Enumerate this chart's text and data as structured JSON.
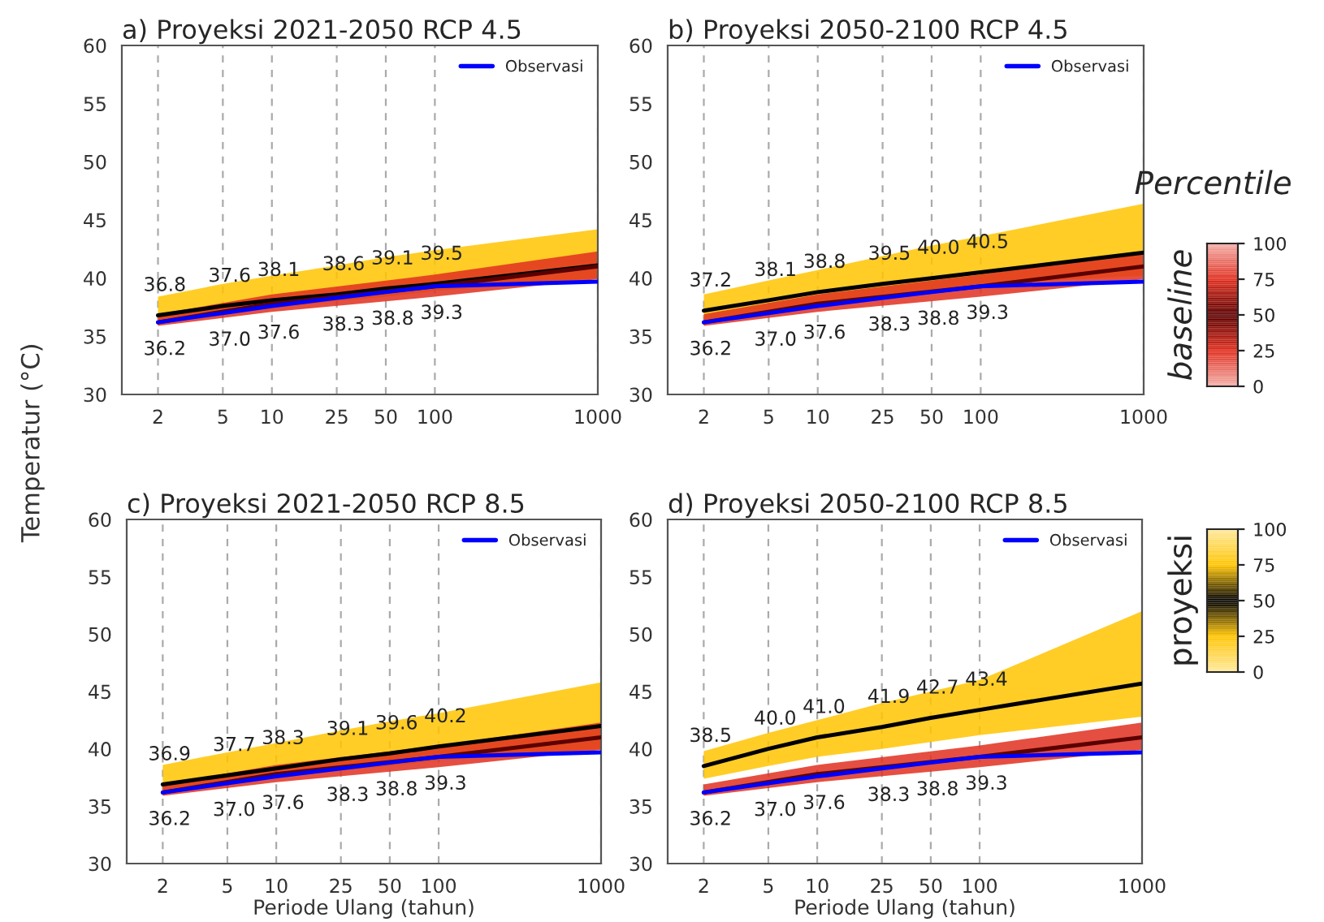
{
  "chart_data": [
    {
      "type": "line",
      "title": "a) Proyeksi 2021-2050 RCP 4.5",
      "ylabel": "Temperatur (°C)",
      "log": "x",
      "xlim": [
        1.2,
        1000
      ],
      "xticks": [
        2,
        5,
        10,
        25,
        50,
        100,
        1000
      ],
      "ylim": [
        30,
        60
      ],
      "yticks": [
        30,
        35,
        40,
        45,
        50,
        55,
        60
      ],
      "grid": "x",
      "legend": "top right",
      "series": [
        {
          "color": "#000000",
          "x": [
            2,
            5,
            10,
            25,
            50,
            100,
            1000
          ],
          "values": [
            36.8,
            37.6,
            38.1,
            38.6,
            39.1,
            39.5,
            41.1
          ],
          "lower": [
            36.2,
            36.9,
            37.4,
            38.0,
            38.4,
            38.9,
            40.0
          ],
          "upper": [
            38.4,
            39.5,
            40.2,
            41.1,
            41.8,
            42.4,
            44.2
          ],
          "value_labels": [
            "36.8",
            "37.6",
            "38.1",
            "38.6",
            "39.1",
            "39.5",
            null
          ]
        },
        {
          "color": "#5a0000",
          "x": [
            2,
            10,
            100,
            1000
          ],
          "values": [
            36.2,
            37.8,
            39.3,
            41.0
          ],
          "lower": [
            35.9,
            37.1,
            38.4,
            39.9
          ],
          "upper": [
            36.9,
            38.6,
            40.3,
            42.3
          ]
        },
        {
          "name": "Observasi",
          "color": "#0000ff",
          "x": [
            2,
            5,
            10,
            25,
            50,
            100,
            1000
          ],
          "values": [
            36.2,
            37.0,
            37.6,
            38.3,
            38.8,
            39.3,
            39.7
          ],
          "value_labels": [
            "36.2",
            "37.0",
            "37.6",
            "38.3",
            "38.8",
            "39.3",
            null
          ]
        }
      ]
    },
    {
      "type": "line",
      "title": "b) Proyeksi 2050-2100 RCP 4.5",
      "log": "x",
      "xlim": [
        1.2,
        1000
      ],
      "xticks": [
        2,
        5,
        10,
        25,
        50,
        100,
        1000
      ],
      "ylim": [
        30,
        60
      ],
      "yticks": [
        30,
        35,
        40,
        45,
        50,
        55,
        60
      ],
      "grid": "x",
      "legend": "top right",
      "clabel": "baseline",
      "clim": [
        0,
        100
      ],
      "cticks": [
        0,
        25,
        50,
        75,
        100
      ],
      "annotations": [
        "Percentile"
      ],
      "series": [
        {
          "color": "#5a0000",
          "x": [
            2,
            10,
            100,
            1000
          ],
          "values": [
            36.2,
            37.8,
            39.3,
            41.0
          ],
          "lower": [
            35.9,
            37.1,
            38.4,
            39.9
          ],
          "upper": [
            36.9,
            38.6,
            40.3,
            42.3
          ]
        },
        {
          "color": "#000000",
          "x": [
            2,
            5,
            10,
            25,
            50,
            100,
            1000
          ],
          "values": [
            37.2,
            38.1,
            38.8,
            39.5,
            40.0,
            40.5,
            42.2
          ],
          "lower": [
            36.4,
            37.2,
            37.8,
            38.5,
            39.0,
            39.5,
            40.2
          ],
          "upper": [
            38.6,
            39.8,
            40.7,
            41.9,
            42.8,
            43.6,
            46.4
          ],
          "value_labels": [
            "37.2",
            "38.1",
            "38.8",
            "39.5",
            "40.0",
            "40.5",
            null
          ]
        },
        {
          "name": "Observasi",
          "color": "#0000ff",
          "x": [
            2,
            5,
            10,
            25,
            50,
            100,
            1000
          ],
          "values": [
            36.2,
            37.0,
            37.6,
            38.3,
            38.8,
            39.3,
            39.7
          ],
          "value_labels": [
            "36.2",
            "37.0",
            "37.6",
            "38.3",
            "38.8",
            "39.3",
            null
          ]
        }
      ]
    },
    {
      "type": "line",
      "title": "c) Proyeksi 2021-2050 RCP 8.5",
      "xlabel": "Periode Ulang (tahun)",
      "log": "x",
      "xlim": [
        1.2,
        1000
      ],
      "xticks": [
        2,
        5,
        10,
        25,
        50,
        100,
        1000
      ],
      "ylim": [
        30,
        60
      ],
      "yticks": [
        30,
        35,
        40,
        45,
        50,
        55,
        60
      ],
      "grid": "x",
      "legend": "top right",
      "series": [
        {
          "color": "#000000",
          "x": [
            2,
            5,
            10,
            25,
            50,
            100,
            1000
          ],
          "values": [
            36.9,
            37.7,
            38.3,
            39.1,
            39.6,
            40.2,
            42.0
          ],
          "lower": [
            36.3,
            37.0,
            37.5,
            38.1,
            38.5,
            39.0,
            40.0
          ],
          "upper": [
            38.6,
            39.7,
            40.5,
            41.6,
            42.4,
            43.1,
            45.8
          ],
          "value_labels": [
            "36.9",
            "37.7",
            "38.3",
            "39.1",
            "39.6",
            "40.2",
            null
          ]
        },
        {
          "color": "#5a0000",
          "x": [
            2,
            10,
            100,
            1000
          ],
          "values": [
            36.2,
            37.8,
            39.3,
            41.0
          ],
          "lower": [
            35.9,
            37.1,
            38.4,
            39.9
          ],
          "upper": [
            36.9,
            38.6,
            40.3,
            42.3
          ]
        },
        {
          "name": "Observasi",
          "color": "#0000ff",
          "x": [
            2,
            5,
            10,
            25,
            50,
            100,
            1000
          ],
          "values": [
            36.2,
            37.0,
            37.6,
            38.3,
            38.8,
            39.3,
            39.7
          ],
          "value_labels": [
            "36.2",
            "37.0",
            "37.6",
            "38.3",
            "38.8",
            "39.3",
            null
          ]
        }
      ]
    },
    {
      "type": "line",
      "title": "d) Proyeksi 2050-2100 RCP 8.5",
      "xlabel": "Periode Ulang (tahun)",
      "log": "x",
      "xlim": [
        1.2,
        1000
      ],
      "xticks": [
        2,
        5,
        10,
        25,
        50,
        100,
        1000
      ],
      "ylim": [
        30,
        60
      ],
      "yticks": [
        30,
        35,
        40,
        45,
        50,
        55,
        60
      ],
      "grid": "x",
      "legend": "top right",
      "clabel": "proyeksi",
      "clim": [
        0,
        100
      ],
      "cticks": [
        0,
        25,
        50,
        75,
        100
      ],
      "series": [
        {
          "color": "#000000",
          "x": [
            2,
            5,
            10,
            25,
            50,
            100,
            1000
          ],
          "values": [
            38.5,
            40.0,
            41.0,
            41.9,
            42.7,
            43.4,
            45.7
          ],
          "lower": [
            37.4,
            38.5,
            39.3,
            40.0,
            40.6,
            41.2,
            42.8
          ],
          "upper": [
            39.8,
            41.4,
            42.5,
            44.0,
            45.0,
            46.0,
            52.0
          ],
          "value_labels": [
            "38.5",
            "40.0",
            "41.0",
            "41.9",
            "42.7",
            "43.4",
            null
          ]
        },
        {
          "color": "#5a0000",
          "x": [
            2,
            10,
            100,
            1000
          ],
          "values": [
            36.2,
            37.8,
            39.3,
            41.0
          ],
          "lower": [
            35.9,
            37.1,
            38.4,
            39.9
          ],
          "upper": [
            36.9,
            38.6,
            40.3,
            42.3
          ]
        },
        {
          "name": "Observasi",
          "color": "#0000ff",
          "x": [
            2,
            5,
            10,
            25,
            50,
            100,
            1000
          ],
          "values": [
            36.2,
            37.0,
            37.6,
            38.3,
            38.8,
            39.3,
            39.7
          ],
          "value_labels": [
            "36.2",
            "37.0",
            "37.6",
            "38.3",
            "38.8",
            "39.3",
            null
          ]
        }
      ]
    }
  ]
}
